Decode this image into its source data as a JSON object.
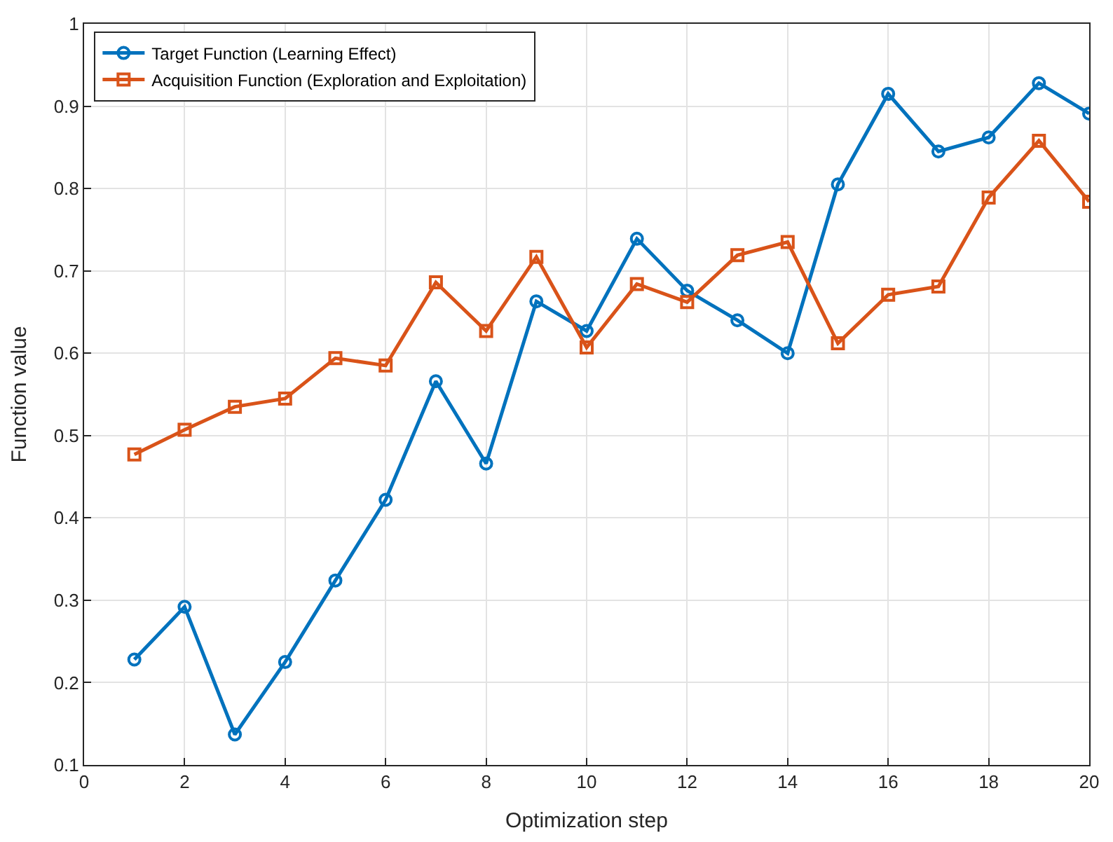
{
  "chart_data": {
    "type": "line",
    "xlabel": "Optimization step",
    "ylabel": "Function value",
    "x": [
      1,
      2,
      3,
      4,
      5,
      6,
      7,
      8,
      9,
      10,
      11,
      12,
      13,
      14,
      15,
      16,
      17,
      18,
      19,
      20
    ],
    "series": [
      {
        "name": "Target Function (Learning Effect)",
        "color": "#0072bd",
        "marker": "circle",
        "values": [
          0.228,
          0.292,
          0.137,
          0.225,
          0.324,
          0.422,
          0.566,
          0.466,
          0.663,
          0.627,
          0.739,
          0.676,
          0.64,
          0.6,
          0.805,
          0.915,
          0.845,
          0.862,
          0.928,
          0.891
        ]
      },
      {
        "name": "Acquisition Function (Exploration and Exploitation)",
        "color": "#d95319",
        "marker": "square",
        "values": [
          0.477,
          0.507,
          0.535,
          0.545,
          0.594,
          0.585,
          0.686,
          0.627,
          0.717,
          0.607,
          0.684,
          0.662,
          0.719,
          0.735,
          0.612,
          0.671,
          0.681,
          0.789,
          0.858,
          0.784
        ]
      }
    ],
    "xlim": [
      0,
      20
    ],
    "xticks": [
      0,
      2,
      4,
      6,
      8,
      10,
      12,
      14,
      16,
      18,
      20
    ],
    "ylim": [
      0.1,
      1
    ],
    "yticks": [
      0.1,
      0.2,
      0.3,
      0.4,
      0.5,
      0.6,
      0.7,
      0.8,
      0.9,
      1
    ],
    "grid": true,
    "legend": "top left",
    "line_style": "solid"
  }
}
